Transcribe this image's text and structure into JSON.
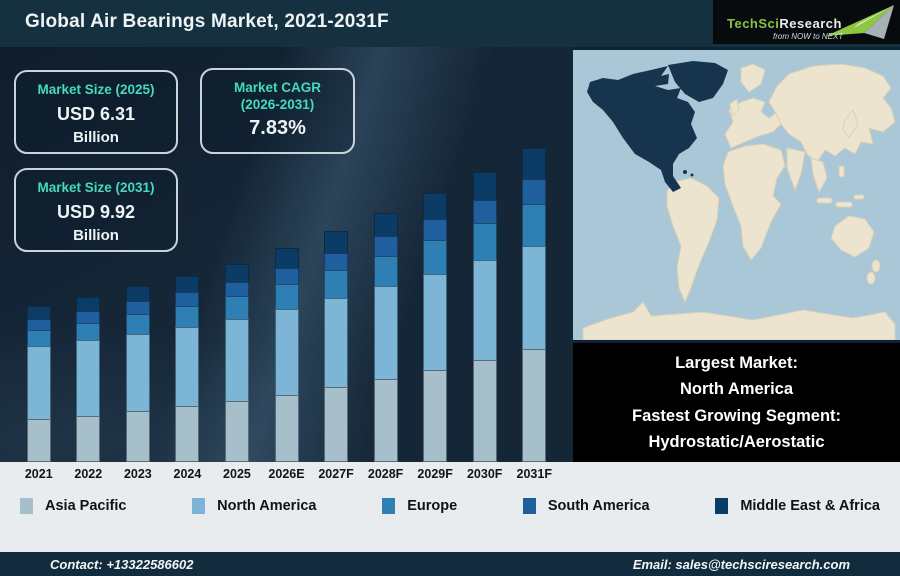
{
  "header": {
    "title": "Global Air Bearings Market, 2021-2031F",
    "logo": {
      "brand": "TechSci",
      "brand2": "Research",
      "tagline": "from NOW to NEXT"
    }
  },
  "cards": [
    {
      "title": "Market Size (2025)",
      "value": "USD 6.31",
      "unit": "Billion"
    },
    {
      "title": "Market CAGR",
      "subtitle": "(2026-2031)",
      "value": "7.83%"
    },
    {
      "title": "Market Size (2031)",
      "value": "USD 9.92",
      "unit": "Billion"
    }
  ],
  "highlight_box": {
    "lines": [
      "Largest Market:",
      "North America",
      "Fastest Growing Segment:",
      "Hydrostatic/Aerostatic"
    ]
  },
  "chart_data": {
    "type": "bar",
    "stacked": true,
    "title": "Global Air Bearings Market, 2021-2031F",
    "unit": "USD Billion",
    "categories": [
      "2021",
      "2022",
      "2023",
      "2024",
      "2025",
      "2026E",
      "2027F",
      "2028F",
      "2029F",
      "2030F",
      "2031F"
    ],
    "series": [
      {
        "name": "Asia Pacific",
        "color": "#a6bfca",
        "values": [
          1.33,
          1.45,
          1.59,
          1.74,
          1.91,
          2.11,
          2.35,
          2.61,
          2.89,
          3.2,
          3.54
        ]
      },
      {
        "name": "North America",
        "color": "#7cb5d5",
        "values": [
          2.32,
          2.38,
          2.45,
          2.52,
          2.58,
          2.69,
          2.8,
          2.91,
          3.02,
          3.13,
          3.24
        ]
      },
      {
        "name": "Europe",
        "color": "#2e7fb3",
        "values": [
          0.55,
          0.59,
          0.64,
          0.69,
          0.75,
          0.82,
          0.9,
          0.99,
          1.09,
          1.19,
          1.33
        ]
      },
      {
        "name": "South America",
        "color": "#1f5f9e",
        "values": [
          0.37,
          0.4,
          0.43,
          0.46,
          0.49,
          0.54,
          0.59,
          0.64,
          0.7,
          0.76,
          0.83
        ]
      },
      {
        "name": "Middle East & Africa",
        "color": "#0b3c66",
        "values": [
          0.44,
          0.47,
          0.51,
          0.54,
          0.58,
          0.64,
          0.69,
          0.76,
          0.83,
          0.92,
          0.98
        ]
      }
    ],
    "totals": [
      5.01,
      5.29,
      5.62,
      5.95,
      6.31,
      6.8,
      7.33,
      7.91,
      8.53,
      9.2,
      9.92
    ],
    "ylim": [
      0,
      10.5
    ],
    "grid": false,
    "legend_position": "bottom"
  },
  "footer": {
    "contact": "Contact: +13322586602",
    "email": "Email: sales@techsciresearch.com"
  },
  "colors": {
    "accent_teal": "#45d9c0",
    "header_bg": "#15313f",
    "chart_bg": "#152637",
    "band_bg": "#e8ecee",
    "footer_bg": "#122c3d",
    "logo_green": "#86c440",
    "map_ocean": "#a9c7d6",
    "map_land": "#ece4cf",
    "map_highlight": "#16344e"
  }
}
